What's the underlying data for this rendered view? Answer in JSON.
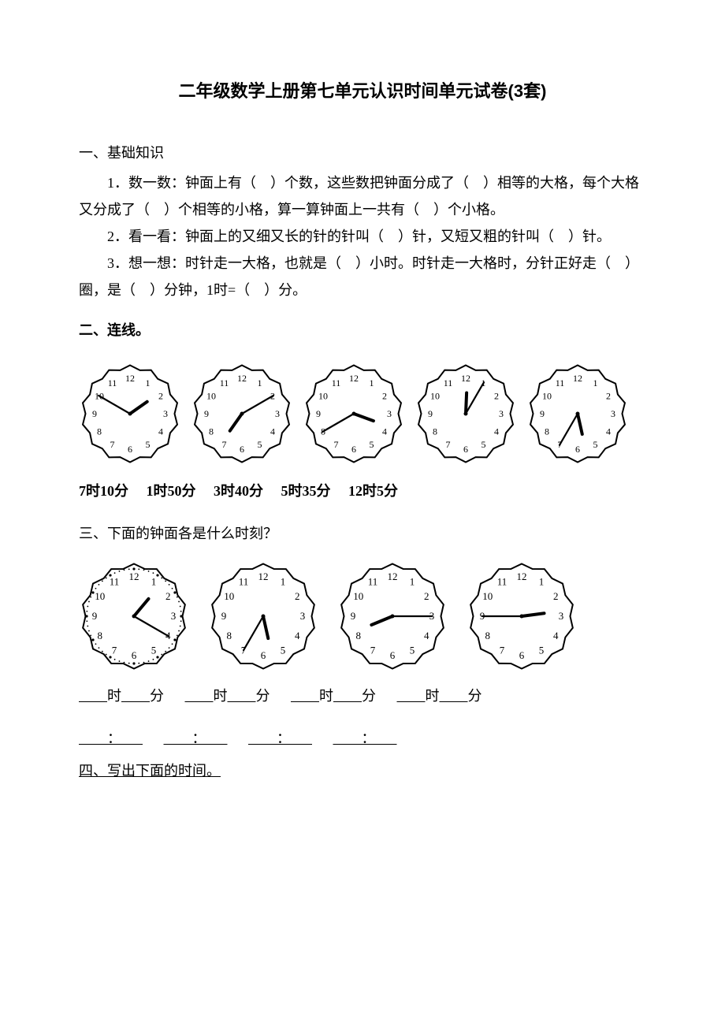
{
  "title": "二年级数学上册第七单元认识时间单元试卷(3套)",
  "sec1": {
    "heading": "一、基础知识",
    "q1": "1．数一数：钟面上有（　）个数，这些数把钟面分成了（　）相等的大格，每个大格又分成了（　）个相等的小格，算一算钟面上一共有（　）个小格。",
    "q2": "2．看一看：钟面上的又细又长的针的针叫（　）针，又短又粗的针叫（　）针。",
    "q3": "3．想一想：时针走一大格，也就是（　）小时。时针走一大格时，分针正好走（　）圈，是（　）分钟，1时=（　）分。"
  },
  "sec2": {
    "heading": "二、连线。",
    "clocks": [
      {
        "hour": 1.83,
        "minute": 50
      },
      {
        "hour": 7.17,
        "minute": 10
      },
      {
        "hour": 3.67,
        "minute": 40
      },
      {
        "hour": 12.08,
        "minute": 5
      },
      {
        "hour": 5.58,
        "minute": 35
      }
    ],
    "times": [
      "7时10分",
      "1时50分",
      "3时40分",
      "5时35分",
      "12时5分"
    ],
    "clock_style": {
      "size": 130,
      "stroke": "#000000",
      "stroke_width": 2,
      "face_fill": "#ffffff",
      "number_fontsize": 12
    }
  },
  "sec3": {
    "heading": "三、下面的钟面各是什么时刻？",
    "clocks": [
      {
        "hour": 1.33,
        "minute": 20,
        "dotted": true
      },
      {
        "hour": 5.58,
        "minute": 35,
        "dotted": false
      },
      {
        "hour": 8.25,
        "minute": 15,
        "dotted": false
      },
      {
        "hour": 2.75,
        "minute": 45,
        "dotted": false
      }
    ],
    "fill_label_hour": "时",
    "fill_label_min": "分",
    "clock_style": {
      "size": 140,
      "stroke": "#000000",
      "stroke_width": 2,
      "face_fill": "#ffffff",
      "number_fontsize": 13
    }
  },
  "sec4": {
    "heading": "四、写出下面的时间。"
  }
}
